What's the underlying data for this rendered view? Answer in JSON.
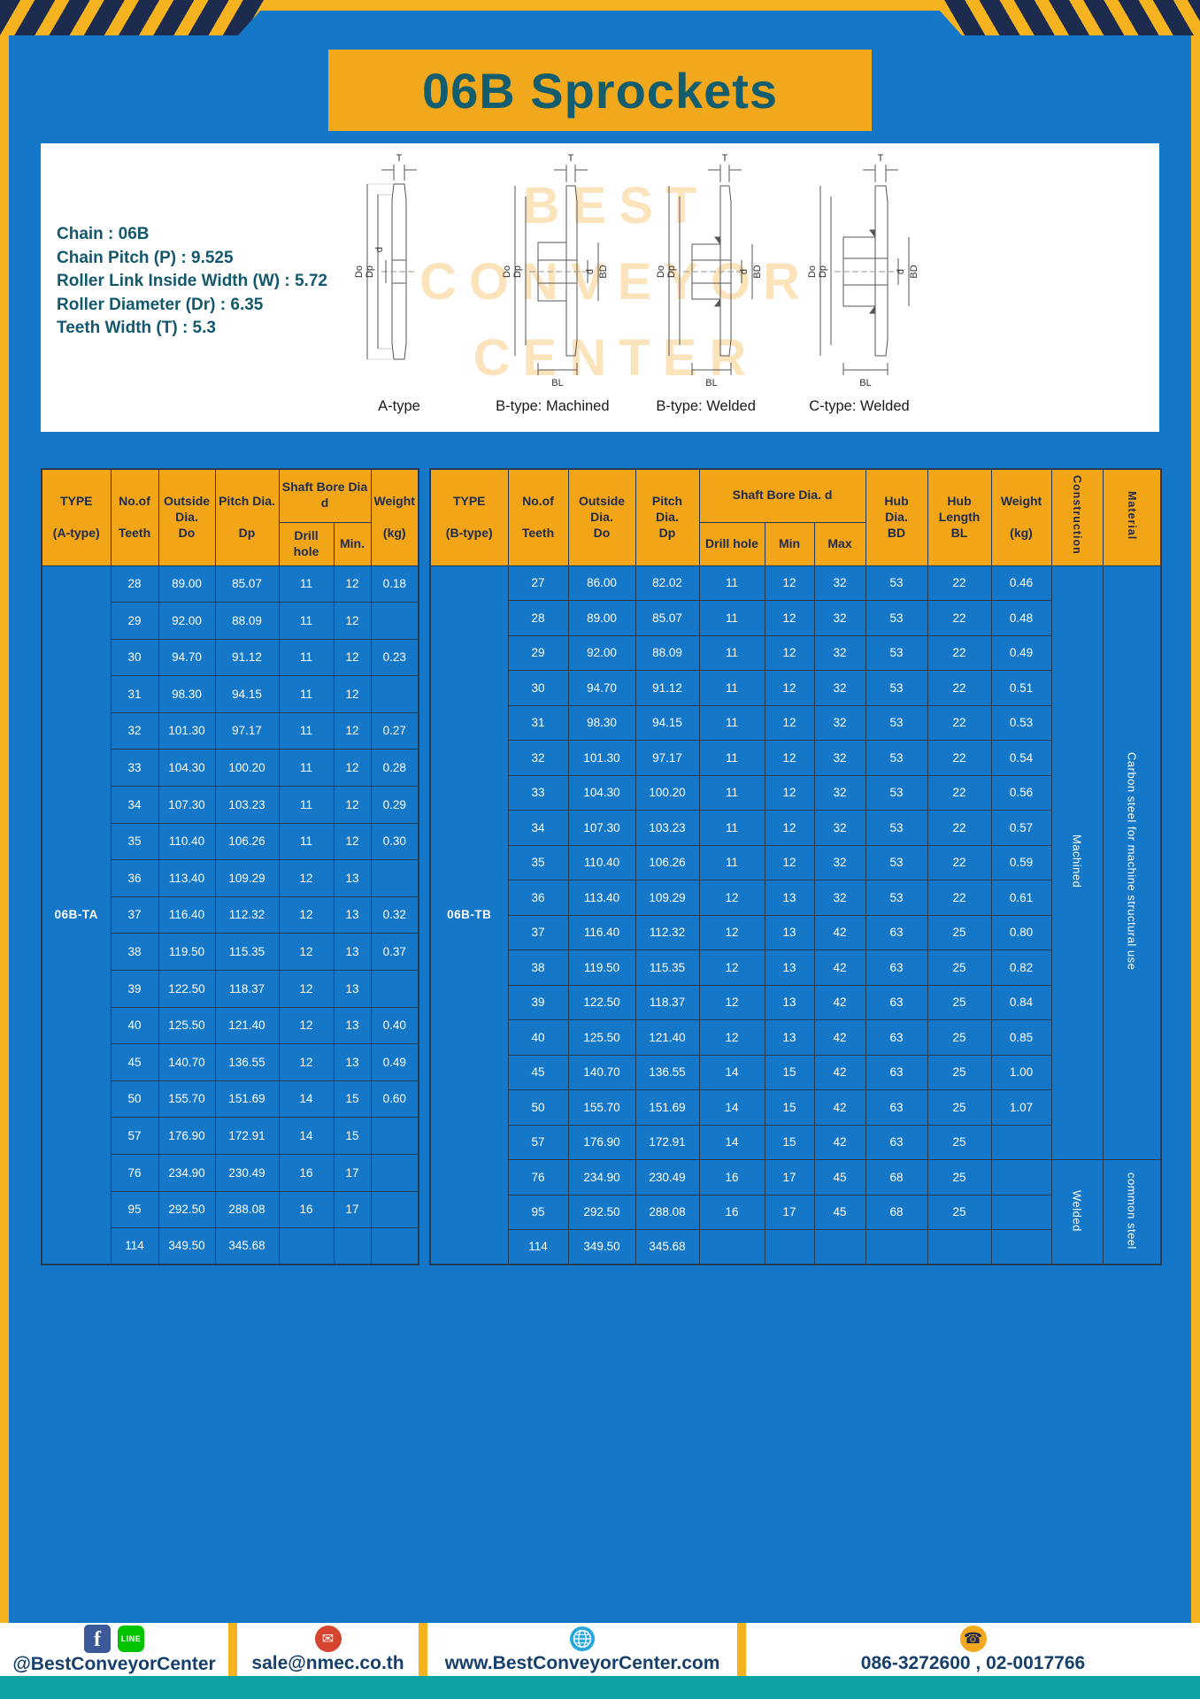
{
  "page": {
    "title": "06B Sprockets"
  },
  "specs": {
    "lines": [
      "Chain : 06B",
      "Chain Pitch (P) : 9.525",
      "Roller Link Inside Width (W) : 5.72",
      "Roller Diameter (Dr) : 6.35",
      "Teeth Width (T) : 5.3"
    ]
  },
  "watermark": {
    "line1": "BEST",
    "line2": "CONVEYOR",
    "line3": "CENTER"
  },
  "diagrams": {
    "dims": {
      "t": "T",
      "do": "Do",
      "dp": "Dp",
      "d": "d",
      "bd": "BD",
      "bl": "BL"
    },
    "items": [
      {
        "label": "A-type"
      },
      {
        "label": "B-type: Machined"
      },
      {
        "label": "B-type: Welded"
      },
      {
        "label": "C-type: Welded"
      }
    ]
  },
  "table_a": {
    "type_label": "06B-TA",
    "headers": {
      "type": "TYPE\n\n(A-type)",
      "teeth": "No.of\n\nTeeth",
      "outside": "Outside\nDia.\nDo",
      "pitch": "Pitch Dia.\n\nDp",
      "shaft": "Shaft Bore Dia d",
      "drill": "Drill hole",
      "min": "Min.",
      "weight": "Weight\n\n(kg)"
    },
    "rows": [
      [
        "28",
        "89.00",
        "85.07",
        "11",
        "12",
        "0.18"
      ],
      [
        "29",
        "92.00",
        "88.09",
        "11",
        "12",
        ""
      ],
      [
        "30",
        "94.70",
        "91.12",
        "11",
        "12",
        "0.23"
      ],
      [
        "31",
        "98.30",
        "94.15",
        "11",
        "12",
        ""
      ],
      [
        "32",
        "101.30",
        "97.17",
        "11",
        "12",
        "0.27"
      ],
      [
        "33",
        "104.30",
        "100.20",
        "11",
        "12",
        "0.28"
      ],
      [
        "34",
        "107.30",
        "103.23",
        "11",
        "12",
        "0.29"
      ],
      [
        "35",
        "110.40",
        "106.26",
        "11",
        "12",
        "0.30"
      ],
      [
        "36",
        "113.40",
        "109.29",
        "12",
        "13",
        ""
      ],
      [
        "37",
        "116.40",
        "112.32",
        "12",
        "13",
        "0.32"
      ],
      [
        "38",
        "119.50",
        "115.35",
        "12",
        "13",
        "0.37"
      ],
      [
        "39",
        "122.50",
        "118.37",
        "12",
        "13",
        ""
      ],
      [
        "40",
        "125.50",
        "121.40",
        "12",
        "13",
        "0.40"
      ],
      [
        "45",
        "140.70",
        "136.55",
        "12",
        "13",
        "0.49"
      ],
      [
        "50",
        "155.70",
        "151.69",
        "14",
        "15",
        "0.60"
      ],
      [
        "57",
        "176.90",
        "172.91",
        "14",
        "15",
        ""
      ],
      [
        "76",
        "234.90",
        "230.49",
        "16",
        "17",
        ""
      ],
      [
        "95",
        "292.50",
        "288.08",
        "16",
        "17",
        ""
      ],
      [
        "114",
        "349.50",
        "345.68",
        "",
        "",
        ""
      ]
    ]
  },
  "table_b": {
    "type_label": "06B-TB",
    "headers": {
      "type": "TYPE\n\n(B-type)",
      "teeth": "No.of\n\nTeeth",
      "outside": "Outside\nDia.\nDo",
      "pitch": "Pitch\nDia.\nDp",
      "shaft": "Shaft Bore Dia. d",
      "drill": "Drill hole",
      "min": "Min",
      "max": "Max",
      "hub_dia": "Hub\nDia.\nBD",
      "hub_len": "Hub\nLength\nBL",
      "weight": "Weight\n\n(kg)",
      "construction": "Construction",
      "material": "Material"
    },
    "rows": [
      [
        "27",
        "86.00",
        "82.02",
        "11",
        "12",
        "32",
        "53",
        "22",
        "0.46"
      ],
      [
        "28",
        "89.00",
        "85.07",
        "11",
        "12",
        "32",
        "53",
        "22",
        "0.48"
      ],
      [
        "29",
        "92.00",
        "88.09",
        "11",
        "12",
        "32",
        "53",
        "22",
        "0.49"
      ],
      [
        "30",
        "94.70",
        "91.12",
        "11",
        "12",
        "32",
        "53",
        "22",
        "0.51"
      ],
      [
        "31",
        "98.30",
        "94.15",
        "11",
        "12",
        "32",
        "53",
        "22",
        "0.53"
      ],
      [
        "32",
        "101.30",
        "97.17",
        "11",
        "12",
        "32",
        "53",
        "22",
        "0.54"
      ],
      [
        "33",
        "104.30",
        "100.20",
        "11",
        "12",
        "32",
        "53",
        "22",
        "0.56"
      ],
      [
        "34",
        "107.30",
        "103.23",
        "11",
        "12",
        "32",
        "53",
        "22",
        "0.57"
      ],
      [
        "35",
        "110.40",
        "106.26",
        "11",
        "12",
        "32",
        "53",
        "22",
        "0.59"
      ],
      [
        "36",
        "113.40",
        "109.29",
        "12",
        "13",
        "32",
        "53",
        "22",
        "0.61"
      ],
      [
        "37",
        "116.40",
        "112.32",
        "12",
        "13",
        "42",
        "63",
        "25",
        "0.80"
      ],
      [
        "38",
        "119.50",
        "115.35",
        "12",
        "13",
        "42",
        "63",
        "25",
        "0.82"
      ],
      [
        "39",
        "122.50",
        "118.37",
        "12",
        "13",
        "42",
        "63",
        "25",
        "0.84"
      ],
      [
        "40",
        "125.50",
        "121.40",
        "12",
        "13",
        "42",
        "63",
        "25",
        "0.85"
      ],
      [
        "45",
        "140.70",
        "136.55",
        "14",
        "15",
        "42",
        "63",
        "25",
        "1.00"
      ],
      [
        "50",
        "155.70",
        "151.69",
        "14",
        "15",
        "42",
        "63",
        "25",
        "1.07"
      ],
      [
        "57",
        "176.90",
        "172.91",
        "14",
        "15",
        "42",
        "63",
        "25",
        ""
      ],
      [
        "76",
        "234.90",
        "230.49",
        "16",
        "17",
        "45",
        "68",
        "25",
        ""
      ],
      [
        "95",
        "292.50",
        "288.08",
        "16",
        "17",
        "45",
        "68",
        "25",
        ""
      ],
      [
        "114",
        "349.50",
        "345.68",
        "",
        "",
        "",
        "",
        "",
        ""
      ]
    ],
    "construction_groups": [
      {
        "label": "Machined",
        "span": 17
      },
      {
        "label": "Welded",
        "span": 3
      }
    ],
    "material_groups": [
      {
        "label": "Carbon steel for machine structural use",
        "span": 17
      },
      {
        "label": "common steel",
        "span": 3
      }
    ]
  },
  "footer": {
    "social_handle": "@BestConveyorCenter",
    "email": "sale@nmec.co.th",
    "website": "www.BestConveyorCenter.com",
    "phones": "086-3272600 , 02-0017766",
    "icons": {
      "facebook": "f",
      "line": "LINE",
      "mail": "✉",
      "phone": "☎"
    }
  }
}
